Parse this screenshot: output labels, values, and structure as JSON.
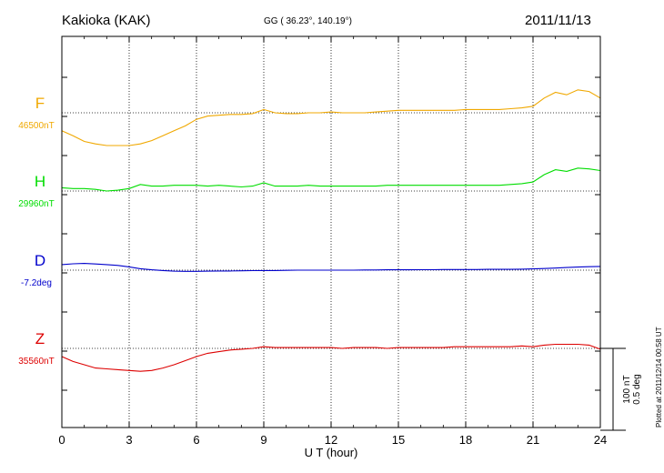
{
  "header": {
    "station": "Kakioka (KAK)",
    "coordinates": "GG ( 36.23°, 140.19°)",
    "date": "2011/11/13"
  },
  "footer": {
    "plotted_note": "Plotted at 2011/12/14 00:58 UT"
  },
  "chart_data": {
    "type": "line",
    "xlabel": "U T (hour)",
    "xlim": [
      0,
      24
    ],
    "xticks": [
      0,
      3,
      6,
      9,
      12,
      15,
      18,
      21,
      24
    ],
    "grid": true,
    "scale_bar": {
      "nT_label": "100 nT",
      "deg_label": "0.5 deg",
      "nT": 100,
      "deg": 0.5
    },
    "series": [
      {
        "name": "F",
        "baseline_label": "46500nT",
        "baseline": 46500,
        "unit": "nT",
        "color": "#f0a800",
        "x": [
          0,
          0.5,
          1,
          1.5,
          2,
          2.5,
          3,
          3.5,
          4,
          4.5,
          5,
          5.5,
          6,
          6.5,
          7,
          7.5,
          8,
          8.5,
          9,
          9.5,
          10,
          10.5,
          11,
          11.5,
          12,
          12.5,
          13,
          13.5,
          14,
          14.5,
          15,
          15.5,
          16,
          16.5,
          17,
          17.5,
          18,
          18.5,
          19,
          19.5,
          20,
          20.5,
          21,
          21.5,
          22,
          22.5,
          23,
          23.5,
          24
        ],
        "y": [
          46478,
          46472,
          46465,
          46462,
          46460,
          46460,
          46460,
          46462,
          46466,
          46472,
          46478,
          46484,
          46492,
          46496,
          46497,
          46498,
          46498,
          46499,
          46504,
          46500,
          46499,
          46499,
          46500,
          46500,
          46501,
          46500,
          46500,
          46500,
          46501,
          46502,
          46503,
          46503,
          46503,
          46503,
          46503,
          46503,
          46504,
          46504,
          46504,
          46504,
          46505,
          46506,
          46508,
          46518,
          46525,
          46522,
          46528,
          46526,
          46518
        ]
      },
      {
        "name": "H",
        "baseline_label": "29960nT",
        "baseline": 29960,
        "unit": "nT",
        "color": "#00dd00",
        "x": [
          0,
          0.5,
          1,
          1.5,
          2,
          2.5,
          3,
          3.5,
          4,
          4.5,
          5,
          5.5,
          6,
          6.5,
          7,
          7.5,
          8,
          8.5,
          9,
          9.5,
          10,
          10.5,
          11,
          11.5,
          12,
          12.5,
          13,
          13.5,
          14,
          14.5,
          15,
          15.5,
          16,
          16.5,
          17,
          17.5,
          18,
          18.5,
          19,
          19.5,
          20,
          20.5,
          21,
          21.5,
          22,
          22.5,
          23,
          23.5,
          24
        ],
        "y": [
          29964,
          29963,
          29963,
          29962,
          29960,
          29961,
          29963,
          29968,
          29966,
          29966,
          29967,
          29967,
          29967,
          29966,
          29967,
          29966,
          29965,
          29966,
          29970,
          29966,
          29966,
          29966,
          29967,
          29966,
          29966,
          29966,
          29966,
          29966,
          29966,
          29967,
          29967,
          29967,
          29967,
          29967,
          29967,
          29967,
          29967,
          29967,
          29967,
          29967,
          29968,
          29969,
          29971,
          29980,
          29986,
          29984,
          29988,
          29987,
          29985
        ]
      },
      {
        "name": "D",
        "baseline_label": "-7.2deg",
        "baseline": -7.2,
        "unit": "deg",
        "color": "#0000cc",
        "x": [
          0,
          0.5,
          1,
          1.5,
          2,
          2.5,
          3,
          3.5,
          4,
          4.5,
          5,
          5.5,
          6,
          6.5,
          7,
          7.5,
          8,
          8.5,
          9,
          9.5,
          10,
          10.5,
          11,
          11.5,
          12,
          12.5,
          13,
          13.5,
          14,
          14.5,
          15,
          15.5,
          16,
          16.5,
          17,
          17.5,
          18,
          18.5,
          19,
          19.5,
          20,
          20.5,
          21,
          21.5,
          22,
          22.5,
          23,
          23.5,
          24
        ],
        "y": [
          -7.166,
          -7.161,
          -7.159,
          -7.162,
          -7.166,
          -7.171,
          -7.18,
          -7.191,
          -7.198,
          -7.202,
          -7.206,
          -7.207,
          -7.207,
          -7.206,
          -7.205,
          -7.205,
          -7.204,
          -7.203,
          -7.202,
          -7.202,
          -7.201,
          -7.2,
          -7.2,
          -7.2,
          -7.2,
          -7.2,
          -7.2,
          -7.199,
          -7.199,
          -7.198,
          -7.198,
          -7.198,
          -7.197,
          -7.197,
          -7.196,
          -7.196,
          -7.196,
          -7.196,
          -7.195,
          -7.195,
          -7.195,
          -7.194,
          -7.192,
          -7.19,
          -7.187,
          -7.184,
          -7.181,
          -7.179,
          -7.177
        ]
      },
      {
        "name": "Z",
        "baseline_label": "35560nT",
        "baseline": 35560,
        "unit": "nT",
        "color": "#dd0000",
        "x": [
          0,
          0.5,
          1,
          1.5,
          2,
          2.5,
          3,
          3.5,
          4,
          4.5,
          5,
          5.5,
          6,
          6.5,
          7,
          7.5,
          8,
          8.5,
          9,
          9.5,
          10,
          10.5,
          11,
          11.5,
          12,
          12.5,
          13,
          13.5,
          14,
          14.5,
          15,
          15.5,
          16,
          16.5,
          17,
          17.5,
          18,
          18.5,
          19,
          19.5,
          20,
          20.5,
          21,
          21.5,
          22,
          22.5,
          23,
          23.5,
          24
        ],
        "y": [
          35550,
          35544,
          35540,
          35536,
          35535,
          35534,
          35533,
          35532,
          35533,
          35536,
          35540,
          35545,
          35550,
          35554,
          35556,
          35558,
          35559,
          35560,
          35562,
          35561,
          35561,
          35561,
          35561,
          35561,
          35561,
          35560,
          35561,
          35561,
          35561,
          35560,
          35561,
          35561,
          35561,
          35561,
          35561,
          35562,
          35562,
          35562,
          35562,
          35562,
          35562,
          35563,
          35562,
          35564,
          35565,
          35565,
          35565,
          35564,
          35559
        ]
      }
    ]
  }
}
